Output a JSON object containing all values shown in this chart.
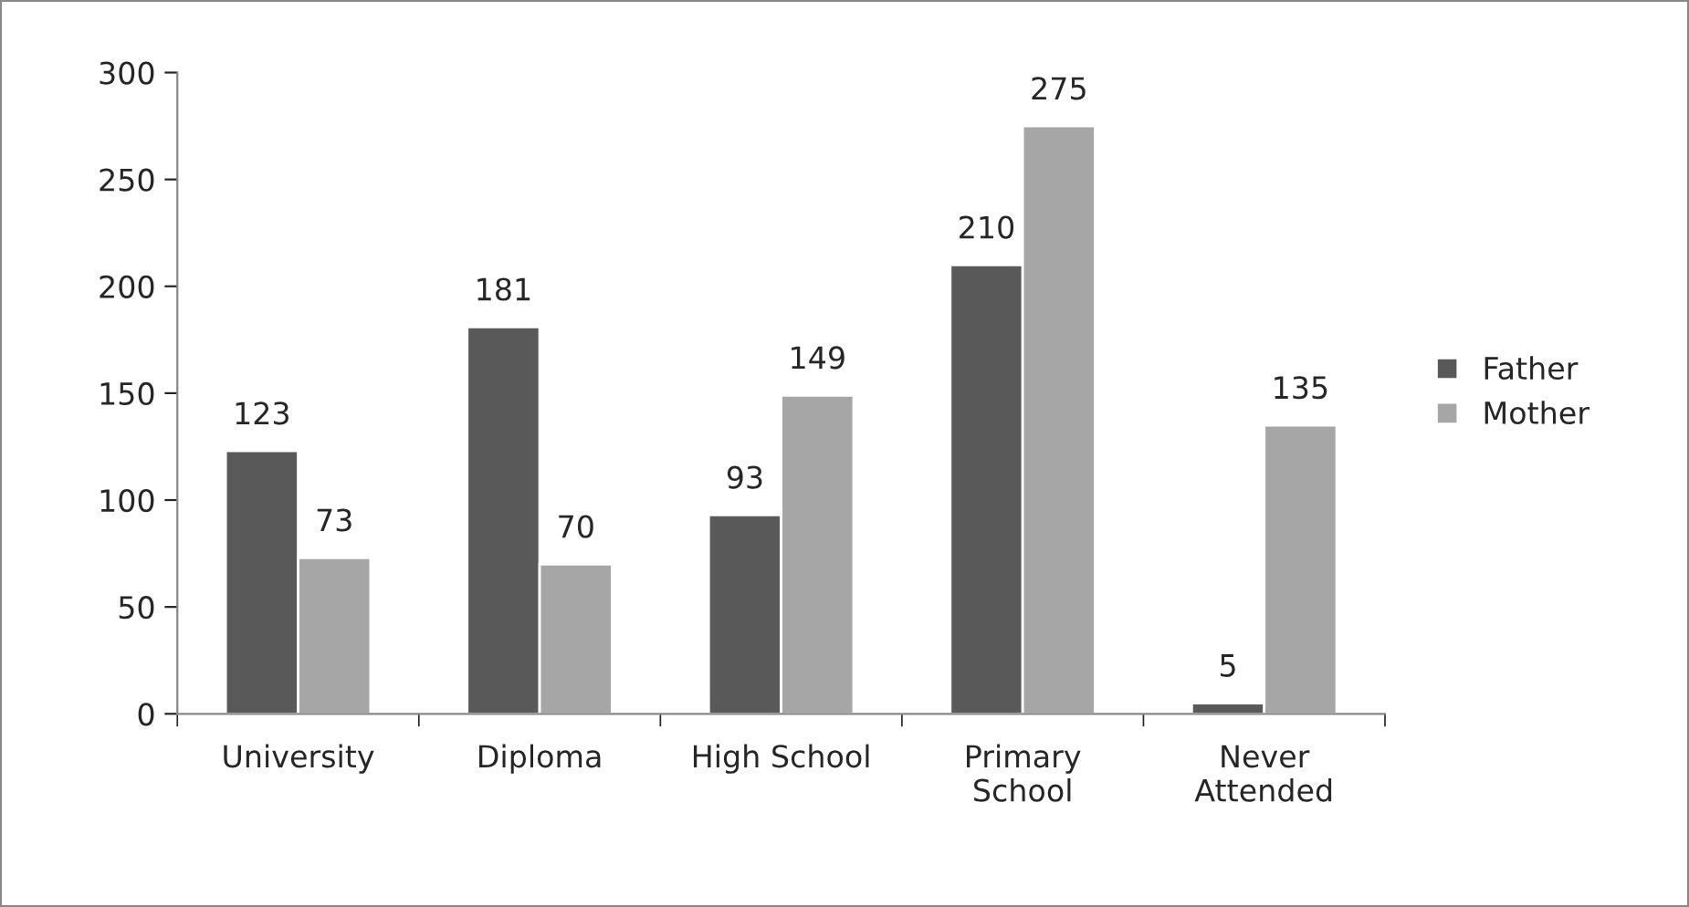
{
  "chart_data": {
    "type": "bar",
    "categories": [
      "University",
      "Diploma",
      "High School",
      "Primary\nSchool",
      "Never\nAttended"
    ],
    "series": [
      {
        "name": "Father",
        "color": "#595959",
        "values": [
          123,
          181,
          93,
          210,
          5
        ]
      },
      {
        "name": "Mother",
        "color": "#a6a6a6",
        "values": [
          73,
          70,
          149,
          275,
          135
        ]
      }
    ],
    "ylim": [
      0,
      300
    ],
    "yticks": [
      0,
      50,
      100,
      150,
      200,
      250,
      300
    ],
    "data_labels": true,
    "legend": "right",
    "grid": false
  }
}
